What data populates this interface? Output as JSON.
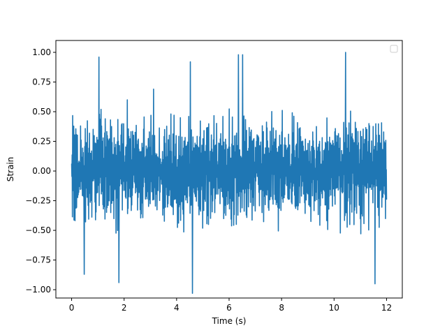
{
  "chart_data": {
    "type": "line",
    "title": "",
    "xlabel": "Time (s)",
    "ylabel": "Strain",
    "xlim": [
      -0.6,
      12.6
    ],
    "ylim": [
      -1.07,
      1.1
    ],
    "x_ticks": [
      0,
      2,
      4,
      6,
      8,
      10,
      12
    ],
    "x_tick_labels": [
      "0",
      "2",
      "4",
      "6",
      "8",
      "10",
      "12"
    ],
    "y_ticks": [
      -1.0,
      -0.75,
      -0.5,
      -0.25,
      0.0,
      0.25,
      0.5,
      0.75,
      1.0
    ],
    "y_tick_labels": [
      "−1.00",
      "−0.75",
      "−0.50",
      "−0.25",
      "0.00",
      "0.25",
      "0.50",
      "0.75",
      "1.00"
    ],
    "grid": false,
    "legend": {
      "placement": "top-right",
      "entries": []
    },
    "series": [
      {
        "color": "#1f77b4",
        "x_range": [
          0,
          12
        ],
        "sample_count": 1200,
        "envelope": {
          "typical_min": -0.55,
          "typical_max": 0.55,
          "extreme_min": -1.03,
          "extreme_max": 1.0
        },
        "peaks": [
          {
            "x": 1.04,
            "y": 0.96
          },
          {
            "x": 1.12,
            "y": 0.52
          },
          {
            "x": 2.12,
            "y": 0.6
          },
          {
            "x": 3.12,
            "y": 0.69
          },
          {
            "x": 4.52,
            "y": 0.92
          },
          {
            "x": 6.36,
            "y": 0.98
          },
          {
            "x": 6.52,
            "y": 0.98
          },
          {
            "x": 10.44,
            "y": 1.0
          },
          {
            "x": 1.8,
            "y": -0.94
          },
          {
            "x": 4.6,
            "y": -1.03
          },
          {
            "x": 0.48,
            "y": -0.87
          },
          {
            "x": 11.56,
            "y": -0.95
          }
        ]
      }
    ]
  }
}
